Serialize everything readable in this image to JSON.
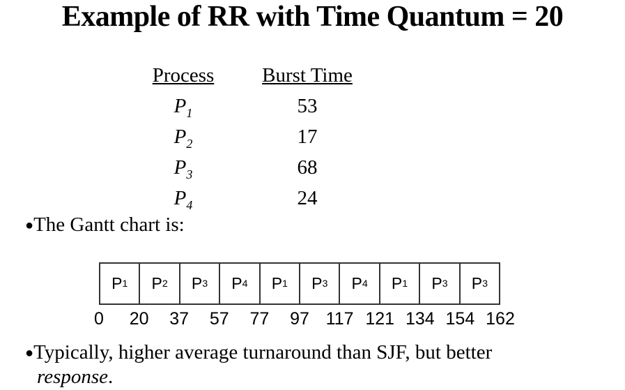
{
  "slide": {
    "title": "Example of RR with Time Quantum = 20",
    "bullet_glyph": "●",
    "gantt_intro": "The Gantt chart is:",
    "closing_line1": "Typically, higher average turnaround than SJF, but better",
    "closing_word_italic": "response",
    "closing_period": "."
  },
  "process_table": {
    "header_process": "Process",
    "header_burst": "Burst Time",
    "rows": [
      {
        "name": "P",
        "sub": "1",
        "burst": "53"
      },
      {
        "name": "P",
        "sub": "2",
        "burst": "17"
      },
      {
        "name": "P",
        "sub": "3",
        "burst": "68"
      },
      {
        "name": "P",
        "sub": "4",
        "burst": "24"
      }
    ]
  },
  "chart_data": {
    "type": "table",
    "title": "Gantt chart",
    "segments": [
      {
        "label": "P",
        "sub": "1",
        "start": 0,
        "end": 20
      },
      {
        "label": "P",
        "sub": "2",
        "start": 20,
        "end": 37
      },
      {
        "label": "P",
        "sub": "3",
        "start": 37,
        "end": 57
      },
      {
        "label": "P",
        "sub": "4",
        "start": 57,
        "end": 77
      },
      {
        "label": "P",
        "sub": "1",
        "start": 77,
        "end": 97
      },
      {
        "label": "P",
        "sub": "3",
        "start": 97,
        "end": 117
      },
      {
        "label": "P",
        "sub": "4",
        "start": 117,
        "end": 121
      },
      {
        "label": "P",
        "sub": "1",
        "start": 121,
        "end": 134
      },
      {
        "label": "P",
        "sub": "3",
        "start": 134,
        "end": 154
      },
      {
        "label": "P",
        "sub": "3",
        "start": 154,
        "end": 162
      }
    ],
    "timeline": [
      "0",
      "20",
      "37",
      "57",
      "77",
      "97",
      "117",
      "121",
      "134",
      "154",
      "162"
    ]
  }
}
